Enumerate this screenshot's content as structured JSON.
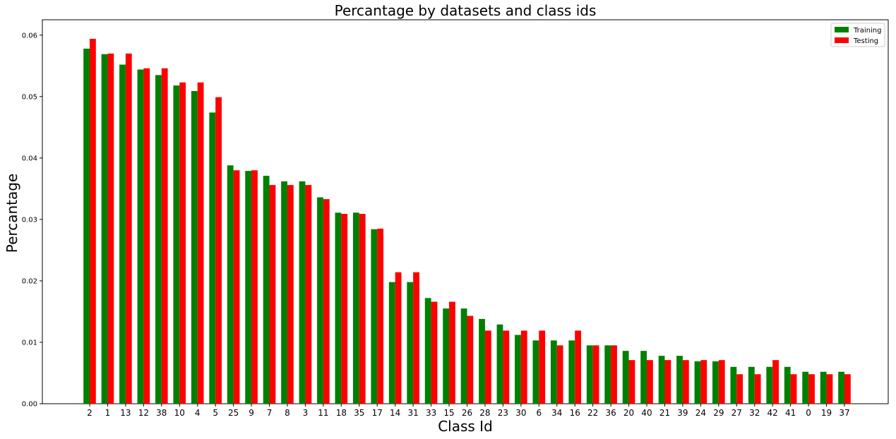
{
  "chart_data": {
    "type": "bar",
    "title": "Percantage by datasets and class ids",
    "xlabel": "Class Id",
    "ylabel": "Percantage",
    "ylim": [
      0,
      0.0625
    ],
    "yticks": [
      "0.00",
      "0.01",
      "0.02",
      "0.03",
      "0.04",
      "0.05",
      "0.06"
    ],
    "ytick_values": [
      0,
      0.01,
      0.02,
      0.03,
      0.04,
      0.05,
      0.06
    ],
    "grid": false,
    "legend_position": "top-right",
    "categories": [
      "2",
      "1",
      "13",
      "12",
      "38",
      "10",
      "4",
      "5",
      "25",
      "9",
      "7",
      "8",
      "3",
      "11",
      "18",
      "35",
      "17",
      "14",
      "31",
      "33",
      "15",
      "26",
      "28",
      "23",
      "30",
      "6",
      "34",
      "16",
      "22",
      "36",
      "20",
      "40",
      "21",
      "39",
      "24",
      "29",
      "27",
      "32",
      "42",
      "41",
      "0",
      "19",
      "37"
    ],
    "series": [
      {
        "name": "Training",
        "color": "#008000",
        "values": [
          0.0578,
          0.0569,
          0.0552,
          0.0544,
          0.0535,
          0.0518,
          0.0509,
          0.0474,
          0.0388,
          0.0379,
          0.0371,
          0.0362,
          0.0362,
          0.0336,
          0.0311,
          0.0311,
          0.0284,
          0.0198,
          0.0198,
          0.0172,
          0.0155,
          0.0155,
          0.0138,
          0.0129,
          0.0112,
          0.0103,
          0.0103,
          0.0103,
          0.0095,
          0.0095,
          0.0086,
          0.0086,
          0.0078,
          0.0078,
          0.0069,
          0.0069,
          0.006,
          0.006,
          0.006,
          0.006,
          0.0052,
          0.0052,
          0.0052
        ]
      },
      {
        "name": "Testing",
        "color": "#ff0000",
        "values": [
          0.0594,
          0.057,
          0.057,
          0.0546,
          0.0546,
          0.0523,
          0.0523,
          0.0499,
          0.038,
          0.038,
          0.0356,
          0.0356,
          0.0356,
          0.0333,
          0.0309,
          0.0309,
          0.0285,
          0.0214,
          0.0214,
          0.0166,
          0.0166,
          0.0143,
          0.0119,
          0.0119,
          0.0119,
          0.0119,
          0.0095,
          0.0119,
          0.0095,
          0.0095,
          0.0071,
          0.0071,
          0.0071,
          0.0071,
          0.0071,
          0.0071,
          0.0048,
          0.0048,
          0.0071,
          0.0048,
          0.0048,
          0.0048,
          0.0048
        ]
      }
    ]
  }
}
